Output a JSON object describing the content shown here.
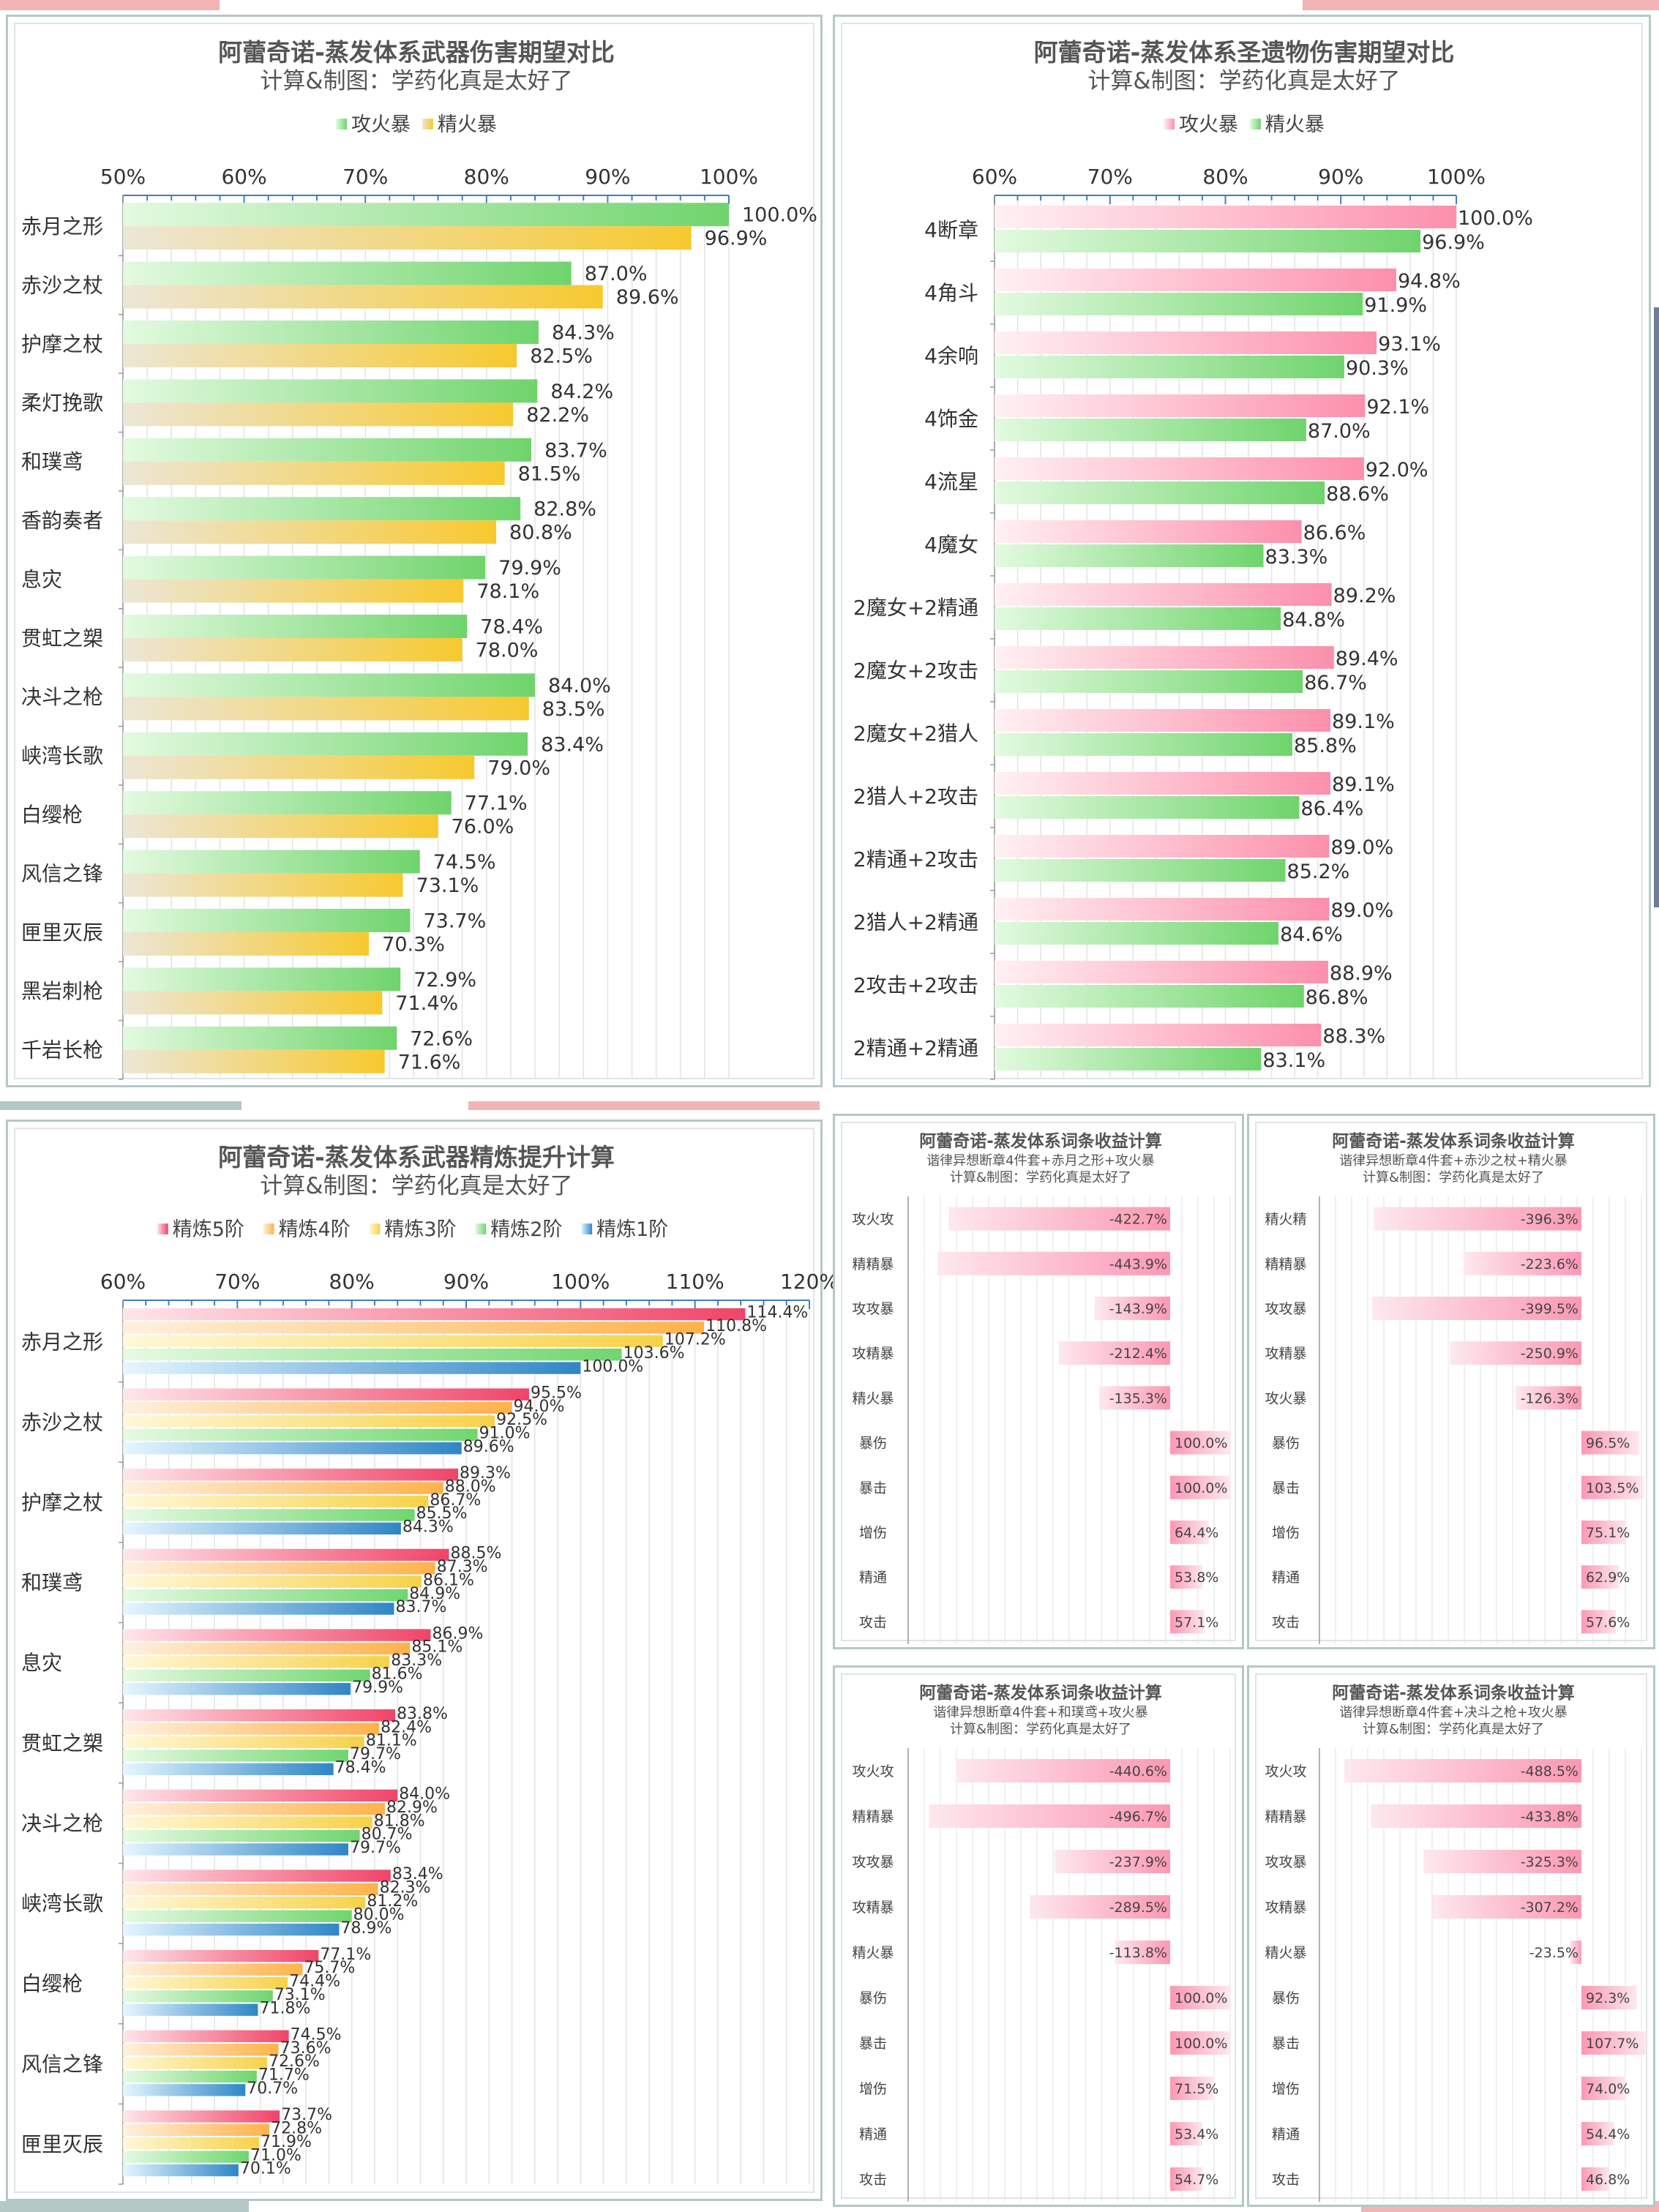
{
  "colors": {
    "atk_start": "#e3fae0",
    "atk_end": "#6fd46c",
    "em_start": "#ece6d6",
    "em_end": "#f7c92f",
    "pink_start": "#fff1f3",
    "pink_end": "#fc8fac",
    "neg_start": "#fde8ee",
    "neg_end": "#fc98b3",
    "r5": "#f04468",
    "r4": "#ffb24a",
    "r3": "#f6d24a",
    "r2": "#6fd66e",
    "r1": "#2f86c6",
    "frame": "#b4c8c6",
    "deco_pink": "#f2b4b4",
    "deco_teal": "#b4c8c6",
    "deco_blue": "#6d7d96"
  },
  "panels": [
    {
      "title": "阿蕾奇诺-蒸发体系武器伤害期望对比",
      "subtitle": "计算&制图：学药化真是太好了",
      "chart_data": {
        "type": "bar",
        "orientation": "horizontal",
        "categories": [
          "赤月之形",
          "赤沙之杖",
          "护摩之杖",
          "柔灯挽歌",
          "和璞鸢",
          "香韵奏者",
          "息灾",
          "贯虹之槊",
          "决斗之枪",
          "峡湾长歌",
          "白缨枪",
          "风信之锋",
          "匣里灭辰",
          "黑岩刺枪",
          "千岩长枪"
        ],
        "series": [
          {
            "name": "攻火暴",
            "values": [
              100.0,
              87.0,
              84.3,
              84.2,
              83.7,
              82.8,
              79.9,
              78.4,
              84.0,
              83.4,
              77.1,
              74.5,
              73.7,
              72.9,
              72.6
            ]
          },
          {
            "name": "精火暴",
            "values": [
              96.9,
              89.6,
              82.5,
              82.2,
              81.5,
              80.8,
              78.1,
              78.0,
              83.5,
              79.0,
              76.0,
              73.1,
              70.3,
              71.4,
              71.6
            ]
          }
        ],
        "xlim": [
          50,
          100
        ],
        "ticks": [
          "50%",
          "60%",
          "70%",
          "80%",
          "90%",
          "100%"
        ],
        "legend_position": "top"
      }
    },
    {
      "title": "阿蕾奇诺-蒸发体系圣遗物伤害期望对比",
      "subtitle": "计算&制图：学药化真是太好了",
      "chart_data": {
        "type": "bar",
        "orientation": "horizontal",
        "categories": [
          "4断章",
          "4角斗",
          "4余响",
          "4饰金",
          "4流星",
          "4魔女",
          "2魔女+2精通",
          "2魔女+2攻击",
          "2魔女+2猎人",
          "2猎人+2攻击",
          "2精通+2攻击",
          "2猎人+2精通",
          "2攻击+2攻击",
          "2精通+2精通"
        ],
        "series": [
          {
            "name": "攻火暴",
            "values": [
              100.0,
              94.8,
              93.1,
              92.1,
              92.0,
              86.6,
              89.2,
              89.4,
              89.1,
              89.1,
              89.0,
              89.0,
              88.9,
              88.3
            ]
          },
          {
            "name": "精火暴",
            "values": [
              96.9,
              91.9,
              90.3,
              87.0,
              88.6,
              83.3,
              84.8,
              86.7,
              85.8,
              86.4,
              85.2,
              84.6,
              86.8,
              83.1
            ]
          }
        ],
        "xlim": [
          60,
          100
        ],
        "ticks": [
          "60%",
          "70%",
          "80%",
          "90%",
          "100%"
        ],
        "legend_position": "top"
      }
    },
    {
      "title": "阿蕾奇诺-蒸发体系武器精炼提升计算",
      "subtitle": "计算&制图：学药化真是太好了",
      "chart_data": {
        "type": "bar",
        "orientation": "horizontal",
        "categories": [
          "赤月之形",
          "赤沙之杖",
          "护摩之杖",
          "和璞鸢",
          "息灾",
          "贯虹之槊",
          "决斗之枪",
          "峡湾长歌",
          "白缨枪",
          "风信之锋",
          "匣里灭辰"
        ],
        "series": [
          {
            "name": "精炼5阶",
            "values": [
              114.4,
              95.5,
              89.3,
              88.5,
              86.9,
              83.8,
              84.0,
              83.4,
              77.1,
              74.5,
              73.7
            ]
          },
          {
            "name": "精炼4阶",
            "values": [
              110.8,
              94.0,
              88.0,
              87.3,
              85.1,
              82.4,
              82.9,
              82.3,
              75.7,
              73.6,
              72.8
            ]
          },
          {
            "name": "精炼3阶",
            "values": [
              107.2,
              92.5,
              86.7,
              86.1,
              83.3,
              81.1,
              81.8,
              81.2,
              74.4,
              72.6,
              71.9
            ]
          },
          {
            "name": "精炼2阶",
            "values": [
              103.6,
              91.0,
              85.5,
              84.9,
              81.6,
              79.7,
              80.7,
              80.0,
              73.1,
              71.7,
              71.0
            ]
          },
          {
            "name": "精炼1阶",
            "values": [
              100.0,
              89.6,
              84.3,
              83.7,
              79.9,
              78.4,
              79.7,
              78.9,
              71.8,
              70.7,
              70.1
            ]
          }
        ],
        "xlim": [
          60,
          120
        ],
        "ticks": [
          "60%",
          "70%",
          "80%",
          "90%",
          "100%",
          "110%",
          "120%"
        ],
        "legend_position": "top"
      }
    },
    {
      "title": "阿蕾奇诺-蒸发体系词条收益计算",
      "subtitle": "谐律异想断章4件套+赤月之形+攻火暴",
      "credit": "计算&制图：学药化真是太好了",
      "chart_data": {
        "type": "bar",
        "orientation": "horizontal",
        "categories": [
          "攻火攻",
          "精精暴",
          "攻攻暴",
          "攻精暴",
          "精火暴",
          "暴伤",
          "暴击",
          "增伤",
          "精通",
          "攻击"
        ],
        "values": [
          -422.7,
          -443.9,
          -143.9,
          -212.4,
          -135.3,
          100.0,
          100.0,
          64.4,
          53.8,
          57.1
        ],
        "labels": [
          "-422.7%",
          "-443.9%",
          "-143.9%",
          "-212.4%",
          "-135.3%",
          "100.0%",
          "100.0%",
          "64.4%",
          "53.8%",
          "57.1%"
        ]
      }
    },
    {
      "title": "阿蕾奇诺-蒸发体系词条收益计算",
      "subtitle": "谐律异想断章4件套+赤沙之杖+精火暴",
      "credit": "计算&制图：学药化真是太好了",
      "chart_data": {
        "type": "bar",
        "orientation": "horizontal",
        "categories": [
          "精火精",
          "精精暴",
          "攻攻暴",
          "攻精暴",
          "攻火暴",
          "暴伤",
          "暴击",
          "增伤",
          "精通",
          "攻击"
        ],
        "values": [
          -396.3,
          -223.6,
          -399.5,
          -250.9,
          -126.3,
          96.5,
          103.5,
          75.1,
          62.9,
          57.6
        ],
        "labels": [
          "-396.3%",
          "-223.6%",
          "-399.5%",
          "-250.9%",
          "-126.3%",
          "96.5%",
          "103.5%",
          "75.1%",
          "62.9%",
          "57.6%"
        ]
      }
    },
    {
      "title": "阿蕾奇诺-蒸发体系词条收益计算",
      "subtitle": "谐律异想断章4件套+和璞鸢+攻火暴",
      "credit": "计算&制图：学药化真是太好了",
      "chart_data": {
        "type": "bar",
        "orientation": "horizontal",
        "categories": [
          "攻火攻",
          "精精暴",
          "攻攻暴",
          "攻精暴",
          "精火暴",
          "暴伤",
          "暴击",
          "增伤",
          "精通",
          "攻击"
        ],
        "values": [
          -440.6,
          -496.7,
          -237.9,
          -289.5,
          -113.8,
          100.0,
          100.0,
          71.5,
          53.4,
          54.7
        ],
        "labels": [
          "-440.6%",
          "-496.7%",
          "-237.9%",
          "-289.5%",
          "-113.8%",
          "100.0%",
          "100.0%",
          "71.5%",
          "53.4%",
          "54.7%"
        ]
      }
    },
    {
      "title": "阿蕾奇诺-蒸发体系词条收益计算",
      "subtitle": "谐律异想断章4件套+决斗之枪+攻火暴",
      "credit": "计算&制图：学药化真是太好了",
      "chart_data": {
        "type": "bar",
        "orientation": "horizontal",
        "categories": [
          "攻火攻",
          "精精暴",
          "攻攻暴",
          "攻精暴",
          "精火暴",
          "暴伤",
          "暴击",
          "增伤",
          "精通",
          "攻击"
        ],
        "values": [
          -488.5,
          -433.8,
          -325.3,
          -307.2,
          -23.5,
          92.3,
          107.7,
          74.0,
          54.4,
          46.8
        ],
        "labels": [
          "-488.5%",
          "-433.8%",
          "-325.3%",
          "-307.2%",
          "-23.5%",
          "92.3%",
          "107.7%",
          "74.0%",
          "54.4%",
          "46.8%"
        ]
      }
    }
  ]
}
